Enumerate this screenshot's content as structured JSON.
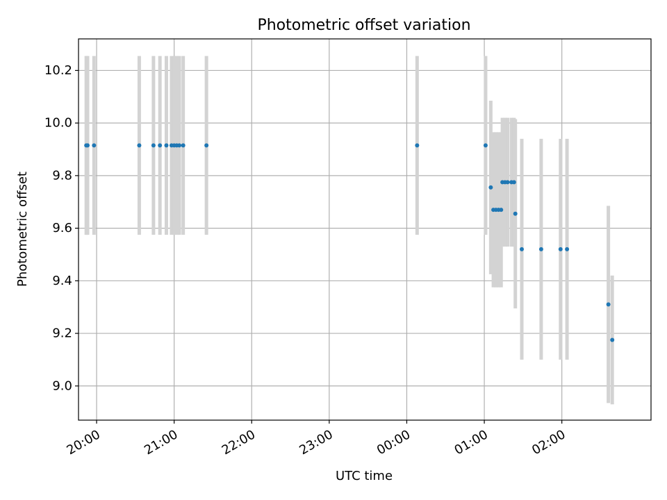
{
  "chart_data": {
    "type": "scatter",
    "title": "Photometric offset variation",
    "xlabel": "UTC time",
    "ylabel": "Photometric offset",
    "grid": true,
    "xlim": [
      "19:46",
      "03:09"
    ],
    "ylim": [
      8.87,
      10.32
    ],
    "x_ticks": [
      "20:00",
      "21:00",
      "22:00",
      "23:00",
      "00:00",
      "01:00",
      "02:00"
    ],
    "y_ticks": [
      "9.0",
      "9.2",
      "9.4",
      "9.6",
      "9.8",
      "10.0",
      "10.2"
    ],
    "colors": {
      "point": "#1f77b4",
      "errorbar": "#d3d3d3",
      "grid": "#b0b0b0"
    },
    "points": [
      {
        "x": "19:52",
        "y": 9.915,
        "err": 0.34
      },
      {
        "x": "19:53",
        "y": 9.915,
        "err": 0.34
      },
      {
        "x": "19:58",
        "y": 9.915,
        "err": 0.34
      },
      {
        "x": "20:33",
        "y": 9.915,
        "err": 0.34
      },
      {
        "x": "20:44",
        "y": 9.915,
        "err": 0.34
      },
      {
        "x": "20:49",
        "y": 9.915,
        "err": 0.34
      },
      {
        "x": "20:54",
        "y": 9.915,
        "err": 0.34
      },
      {
        "x": "20:58",
        "y": 9.915,
        "err": 0.34
      },
      {
        "x": "21:00",
        "y": 9.915,
        "err": 0.34
      },
      {
        "x": "21:02",
        "y": 9.915,
        "err": 0.34
      },
      {
        "x": "21:04",
        "y": 9.915,
        "err": 0.34
      },
      {
        "x": "21:07",
        "y": 9.915,
        "err": 0.34
      },
      {
        "x": "21:25",
        "y": 9.915,
        "err": 0.34
      },
      {
        "x": "00:08",
        "y": 9.915,
        "err": 0.34
      },
      {
        "x": "01:01",
        "y": 9.915,
        "err": 0.34
      },
      {
        "x": "01:05",
        "y": 9.755,
        "err": 0.33
      },
      {
        "x": "01:07",
        "y": 9.67,
        "err": 0.295
      },
      {
        "x": "01:09",
        "y": 9.67,
        "err": 0.295
      },
      {
        "x": "01:11",
        "y": 9.67,
        "err": 0.295
      },
      {
        "x": "01:13",
        "y": 9.67,
        "err": 0.295
      },
      {
        "x": "01:14",
        "y": 9.775,
        "err": 0.245
      },
      {
        "x": "01:16",
        "y": 9.775,
        "err": 0.245
      },
      {
        "x": "01:18",
        "y": 9.775,
        "err": 0.245
      },
      {
        "x": "01:21",
        "y": 9.775,
        "err": 0.245
      },
      {
        "x": "01:23",
        "y": 9.775,
        "err": 0.245
      },
      {
        "x": "01:24",
        "y": 9.655,
        "err": 0.36
      },
      {
        "x": "01:29",
        "y": 9.52,
        "err": 0.42
      },
      {
        "x": "01:44",
        "y": 9.52,
        "err": 0.42
      },
      {
        "x": "01:59",
        "y": 9.52,
        "err": 0.42
      },
      {
        "x": "02:04",
        "y": 9.52,
        "err": 0.42
      },
      {
        "x": "02:36",
        "y": 9.31,
        "err": 0.375
      },
      {
        "x": "02:39",
        "y": 9.175,
        "err": 0.245
      }
    ]
  }
}
